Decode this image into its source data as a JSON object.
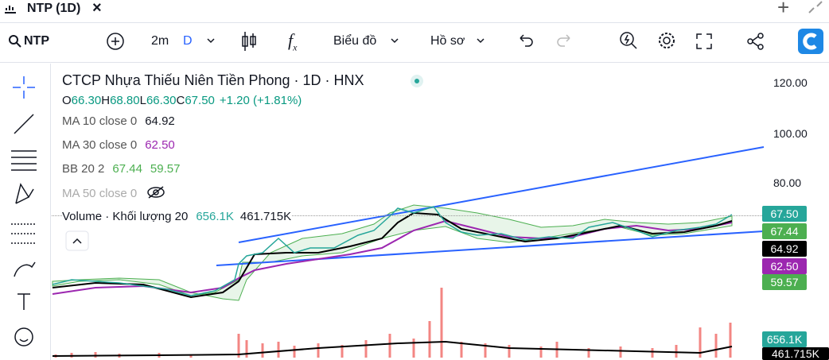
{
  "tab": {
    "title": "NTP (1D)"
  },
  "toolbar": {
    "symbol": "NTP",
    "interval": "2m",
    "interval_type": "D",
    "chart_type": "Biểu đồ",
    "profile": "Hồ sơ"
  },
  "legend": {
    "title": "CTCP Nhựa Thiếu Niên Tiền Phong · 1D · HNX",
    "ohlc": [
      {
        "key": "O",
        "value": "66.30"
      },
      {
        "key": "H",
        "value": "68.80"
      },
      {
        "key": "L",
        "value": "66.30"
      },
      {
        "key": "C",
        "value": "67.50"
      }
    ],
    "change": "+1.20 (+1.81%)",
    "indicators": [
      {
        "name": "MA 10 close 0",
        "values": [
          "64.92"
        ]
      },
      {
        "name": "MA 30 close 0",
        "values": [
          "62.50"
        ]
      },
      {
        "name": "BB 20 2",
        "values": [
          "67.44",
          "59.57"
        ]
      },
      {
        "name": "MA 50 close 0",
        "values": []
      }
    ],
    "volume": {
      "name": "Volume · Khối lượng 20",
      "values": [
        "656.1K",
        "461.715K"
      ]
    }
  },
  "price_axis": {
    "ticks": [
      "120.00",
      "100.00",
      "80.00"
    ]
  },
  "price_labels": [
    "67.50",
    "67.44",
    "64.92",
    "62.50",
    "59.57",
    "656.1K",
    "461.715K"
  ]
}
